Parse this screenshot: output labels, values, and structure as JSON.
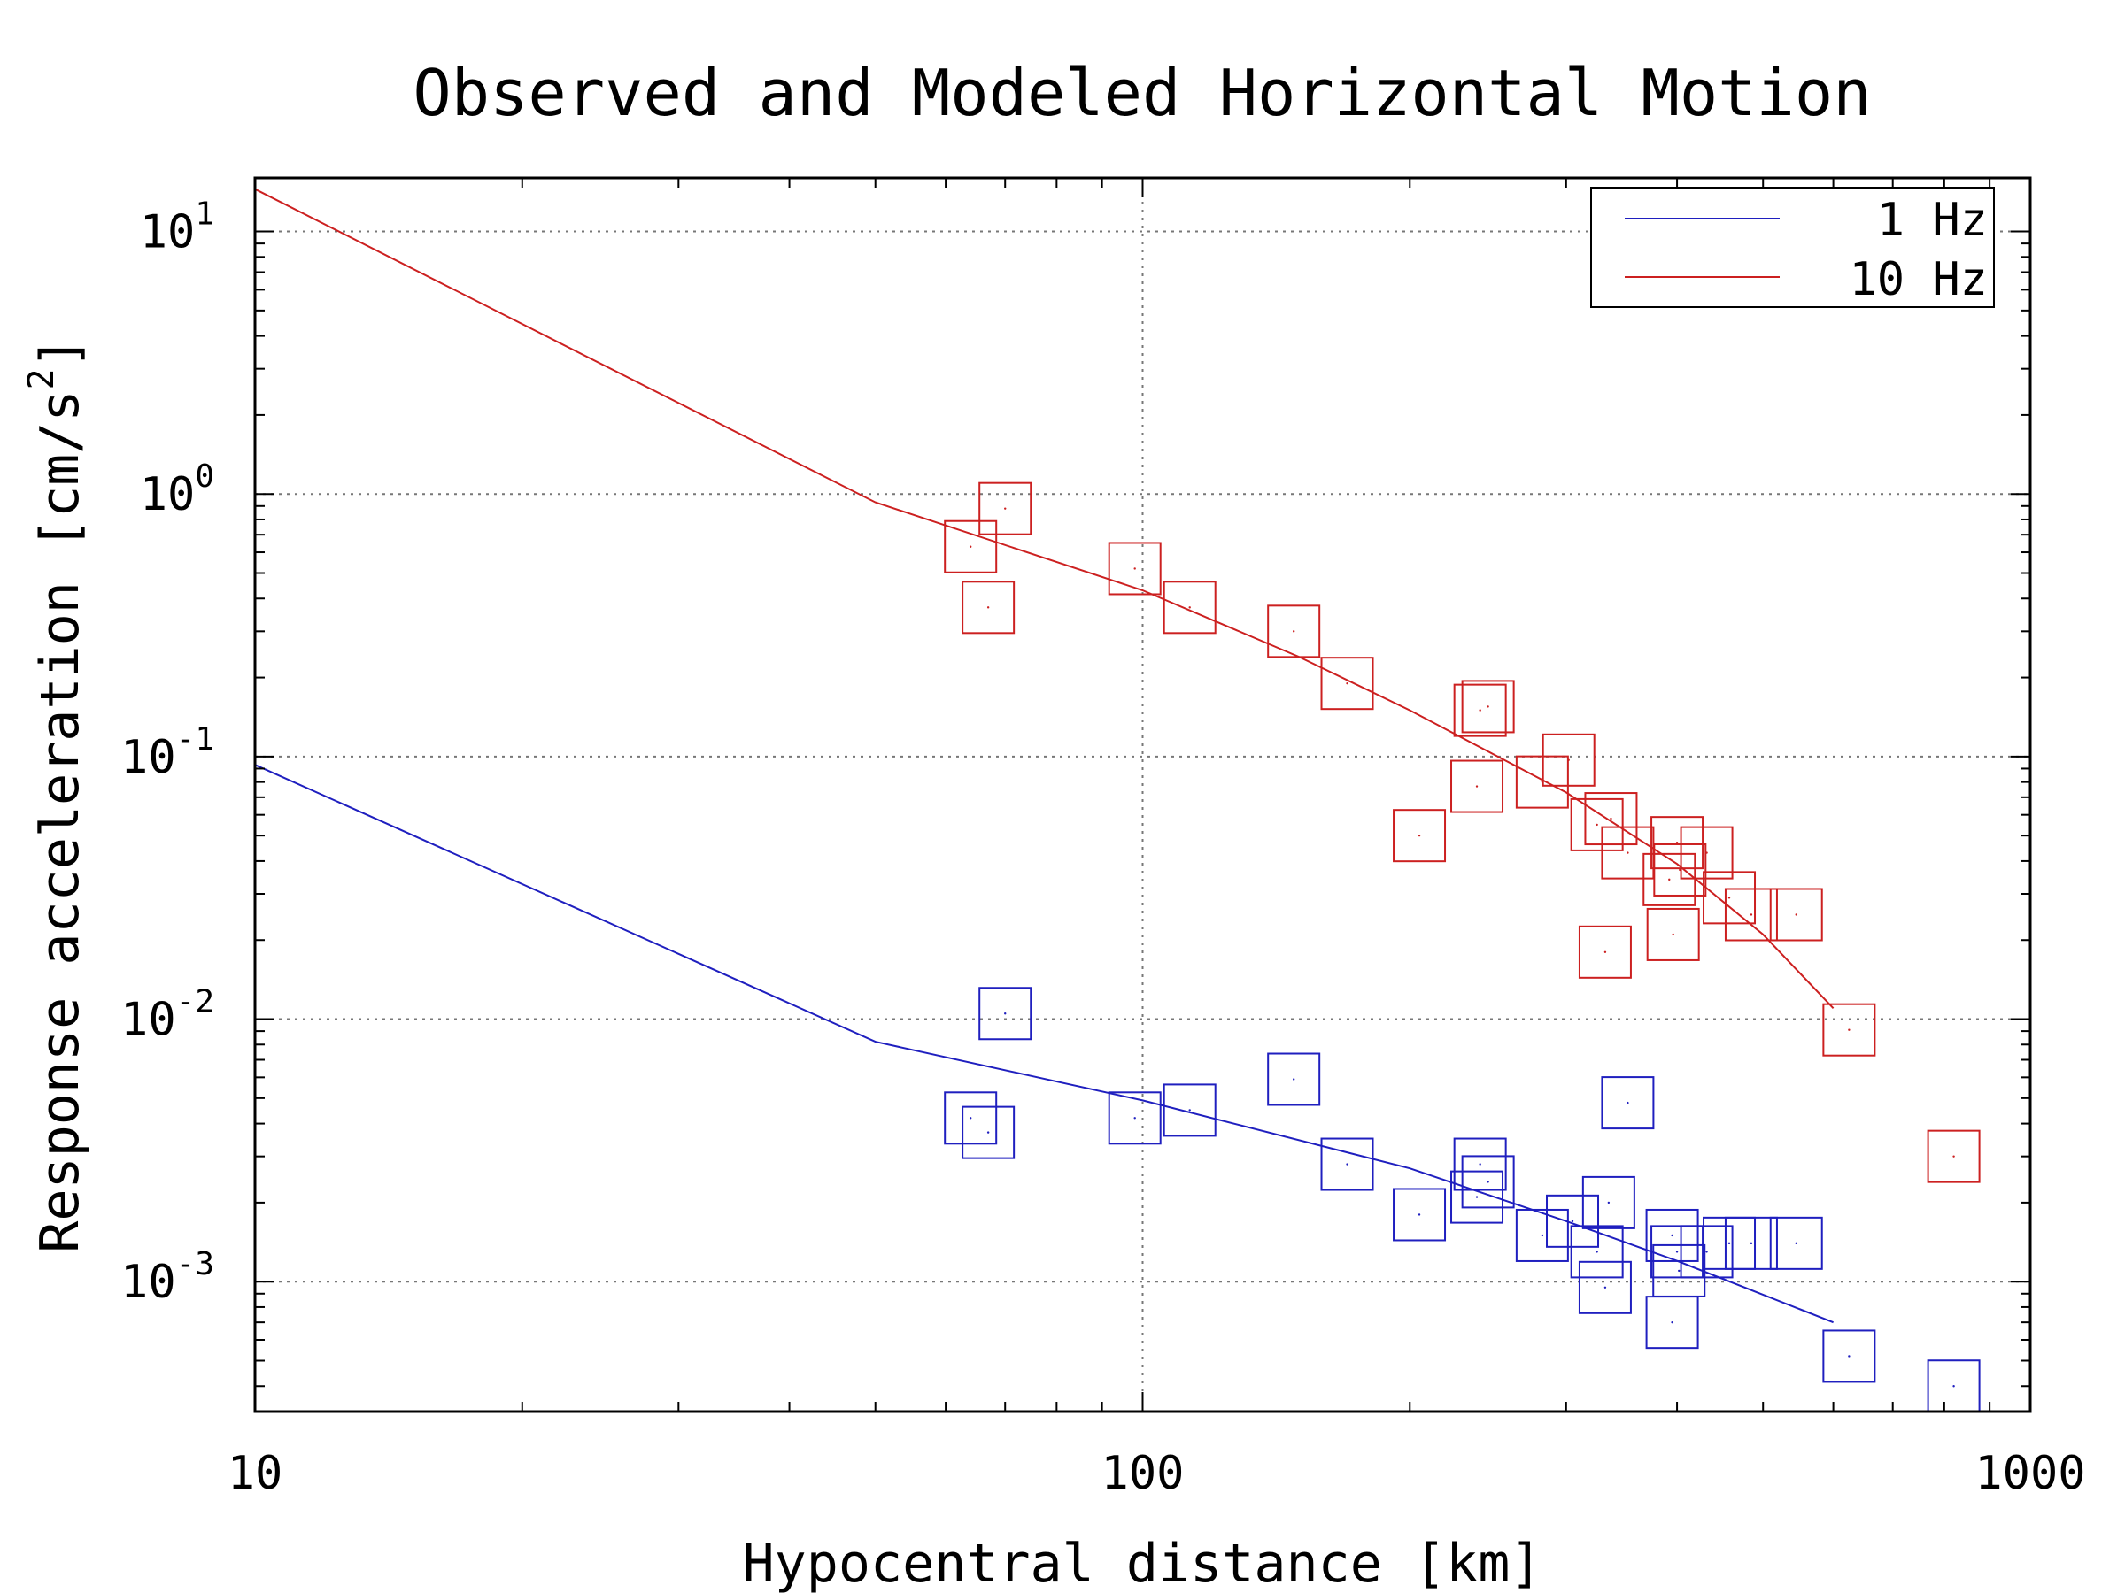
{
  "chart_data": {
    "type": "scatter",
    "title": "Observed and Modeled Horizontal Motion",
    "xlabel": "Hypocentral distance [km]",
    "ylabel_text": "Response acceleration [cm/s",
    "ylabel_sup": "2",
    "ylabel_end": "]",
    "x_scale": "log",
    "y_scale": "log",
    "xlim": [
      10,
      1000
    ],
    "ylim": [
      0.00032,
      16
    ],
    "x_ticks": [
      {
        "value": 10,
        "label": "10"
      },
      {
        "value": 100,
        "label": "100"
      },
      {
        "value": 1000,
        "label": "1000"
      }
    ],
    "y_ticks": [
      {
        "value": 10,
        "base": "10",
        "exp": "1"
      },
      {
        "value": 1,
        "base": "10",
        "exp": "0"
      },
      {
        "value": 0.1,
        "base": "10",
        "exp": "-1"
      },
      {
        "value": 0.01,
        "base": "10",
        "exp": "-2"
      },
      {
        "value": 0.001,
        "base": "10",
        "exp": "-3"
      }
    ],
    "grid": true,
    "legend_position": "top-right",
    "series": [
      {
        "name": "1 Hz",
        "color": "#1f1fbf",
        "model": [
          [
            10,
            0.093
          ],
          [
            50,
            0.0082
          ],
          [
            100,
            0.0049
          ],
          [
            200,
            0.0027
          ],
          [
            300,
            0.0017
          ],
          [
            400,
            0.0012
          ],
          [
            600,
            0.0007
          ]
        ],
        "observed": [
          [
            64,
            0.0042
          ],
          [
            67,
            0.0037
          ],
          [
            70,
            0.0105
          ],
          [
            98,
            0.0042
          ],
          [
            113,
            0.0045
          ],
          [
            148,
            0.0059
          ],
          [
            170,
            0.0028
          ],
          [
            205,
            0.0018
          ],
          [
            238,
            0.0021
          ],
          [
            240,
            0.0028
          ],
          [
            245,
            0.0024
          ],
          [
            282,
            0.0015
          ],
          [
            305,
            0.0017
          ],
          [
            325,
            0.0013
          ],
          [
            332,
            0.00095
          ],
          [
            335,
            0.002
          ],
          [
            352,
            0.0048
          ],
          [
            395,
            0.0015
          ],
          [
            395,
            0.0007
          ],
          [
            400,
            0.0013
          ],
          [
            402,
            0.0011
          ],
          [
            432,
            0.0013
          ],
          [
            458,
            0.0014
          ],
          [
            485,
            0.0014
          ],
          [
            545,
            0.0014
          ],
          [
            625,
            0.00052
          ],
          [
            820,
            0.0004
          ]
        ]
      },
      {
        "name": "10 Hz",
        "color": "#cc2020",
        "model": [
          [
            10,
            14.5
          ],
          [
            50,
            0.93
          ],
          [
            100,
            0.43
          ],
          [
            150,
            0.24
          ],
          [
            200,
            0.15
          ],
          [
            300,
            0.073
          ],
          [
            400,
            0.039
          ],
          [
            500,
            0.021
          ],
          [
            600,
            0.011
          ]
        ],
        "observed": [
          [
            64,
            0.63
          ],
          [
            67,
            0.37
          ],
          [
            70,
            0.88
          ],
          [
            98,
            0.52
          ],
          [
            113,
            0.37
          ],
          [
            148,
            0.3
          ],
          [
            170,
            0.19
          ],
          [
            205,
            0.05
          ],
          [
            238,
            0.077
          ],
          [
            240,
            0.15
          ],
          [
            245,
            0.155
          ],
          [
            282,
            0.08
          ],
          [
            302,
            0.097
          ],
          [
            325,
            0.055
          ],
          [
            332,
            0.018
          ],
          [
            337,
            0.058
          ],
          [
            352,
            0.043
          ],
          [
            392,
            0.034
          ],
          [
            396,
            0.021
          ],
          [
            400,
            0.047
          ],
          [
            403,
            0.037
          ],
          [
            432,
            0.043
          ],
          [
            458,
            0.029
          ],
          [
            485,
            0.025
          ],
          [
            545,
            0.025
          ],
          [
            625,
            0.0091
          ],
          [
            820,
            0.003
          ]
        ]
      }
    ]
  }
}
